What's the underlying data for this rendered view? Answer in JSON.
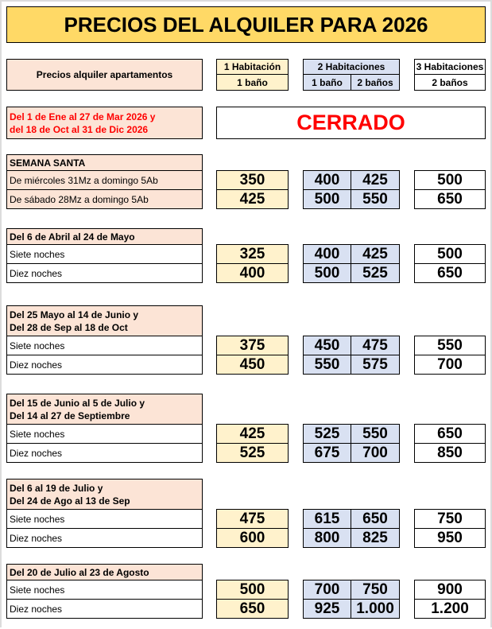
{
  "title": "PRECIOS DEL ALQUILER PARA 2026",
  "header": {
    "label": "Precios alquiler apartamentos",
    "col1_title": "1 Habitación",
    "col1_sub": "1 baño",
    "col2_title": "2 Habitaciones",
    "col2a_sub": "1 baño",
    "col2b_sub": "2 baños",
    "col3_title": "3 Habitaciones",
    "col3_sub": "2 baños"
  },
  "closed": {
    "line1": "Del 1 de Ene al 27 de Mar 2026 y",
    "line2": "del 18 de Oct al 31 de Dic 2026",
    "status": "CERRADO"
  },
  "colors": {
    "title_bg": "#ffd966",
    "label_bg": "#fce4d6",
    "col1_bg": "#fff2cc",
    "col2_bg": "#d9e1f2",
    "closed_text": "#ff0000"
  },
  "sections": [
    {
      "heading": [
        "SEMANA SANTA"
      ],
      "rows": [
        {
          "label": "De miércoles 31Mz a domingo 5Ab",
          "prices": [
            "350",
            "400",
            "425",
            "500"
          ]
        },
        {
          "label": "De sábado 28Mz a domingo 5Ab",
          "prices": [
            "425",
            "500",
            "550",
            "650"
          ]
        }
      ]
    },
    {
      "heading": [
        "Del 6 de Abril al 24 de Mayo"
      ],
      "rows": [
        {
          "label": "Siete noches",
          "prices": [
            "325",
            "400",
            "425",
            "500"
          ]
        },
        {
          "label": "Diez noches",
          "prices": [
            "400",
            "500",
            "525",
            "650"
          ]
        }
      ]
    },
    {
      "heading": [
        "Del 25 Mayo al 14 de Junio y",
        "Del 28 de Sep al 18 de Oct"
      ],
      "rows": [
        {
          "label": "Siete noches",
          "prices": [
            "375",
            "450",
            "475",
            "550"
          ]
        },
        {
          "label": "Diez noches",
          "prices": [
            "450",
            "550",
            "575",
            "700"
          ]
        }
      ]
    },
    {
      "heading": [
        "Del 15 de Junio al 5 de Julio y",
        "Del 14 al 27 de Septiembre"
      ],
      "rows": [
        {
          "label": "Siete noches",
          "prices": [
            "425",
            "525",
            "550",
            "650"
          ]
        },
        {
          "label": "Diez noches",
          "prices": [
            "525",
            "675",
            "700",
            "850"
          ]
        }
      ]
    },
    {
      "heading": [
        "Del 6 al 19 de Julio y",
        "Del 24 de Ago al 13 de Sep"
      ],
      "rows": [
        {
          "label": "Siete noches",
          "prices": [
            "475",
            "615",
            "650",
            "750"
          ]
        },
        {
          "label": "Diez noches",
          "prices": [
            "600",
            "800",
            "825",
            "950"
          ]
        }
      ]
    },
    {
      "heading": [
        "Del 20 de Julio al 23 de Agosto"
      ],
      "rows": [
        {
          "label": "Siete noches",
          "prices": [
            "500",
            "700",
            "750",
            "900"
          ]
        },
        {
          "label": "Diez noches",
          "prices": [
            "650",
            "925",
            "1.000",
            "1.200"
          ]
        }
      ]
    }
  ]
}
